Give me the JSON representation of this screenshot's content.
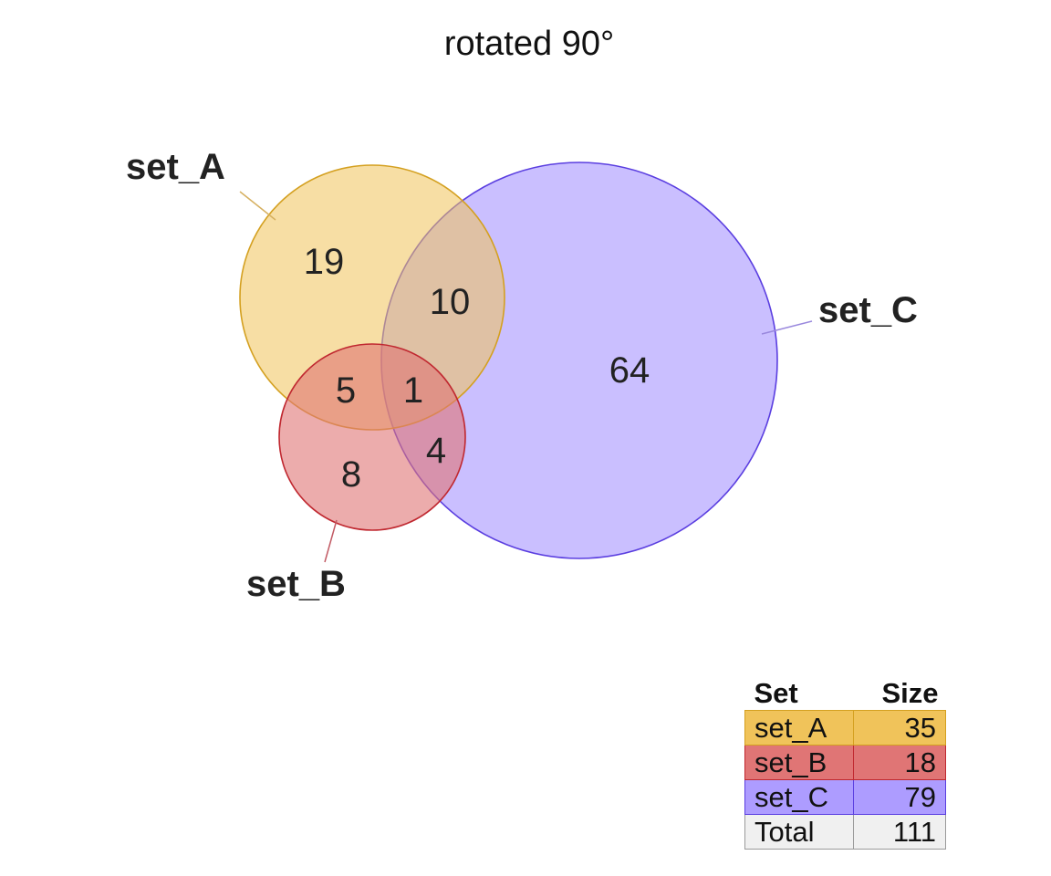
{
  "title": "rotated 90°",
  "sets": [
    {
      "name": "set_A",
      "size": "35",
      "fill": "#f0c35a",
      "stroke": "#d4a020",
      "leader": "#d6b060"
    },
    {
      "name": "set_B",
      "size": "18",
      "fill": "#e07575",
      "stroke": "#c02830",
      "leader": "#c25a64"
    },
    {
      "name": "set_C",
      "size": "79",
      "fill": "#ad9cff",
      "stroke": "#5a3ee0",
      "leader": "#9988dd"
    }
  ],
  "regions": {
    "a_only": "19",
    "a_c": "10",
    "c_only": "64",
    "a_b": "5",
    "a_b_c": "1",
    "b_c": "4",
    "b_only": "8"
  },
  "table": {
    "header_set": "Set",
    "header_size": "Size",
    "total_label": "Total",
    "total_value": "111",
    "total_fill": "#f0f0f0"
  }
}
